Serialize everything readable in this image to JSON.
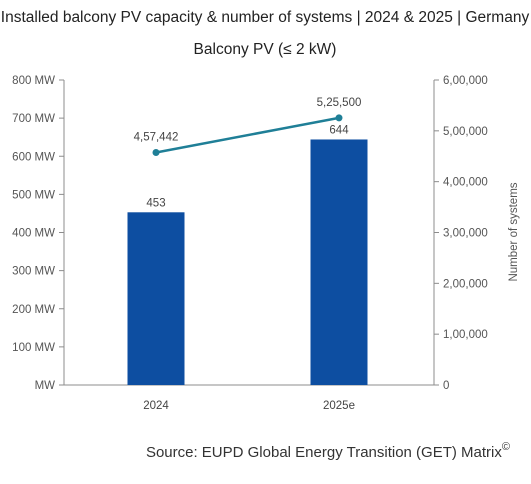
{
  "chart_data": {
    "type": "bar+line",
    "title": "Installed balcony PV capacity & number of systems | 2024 & 2025 | Germany",
    "subtitle": "Balcony PV (≤ 2 kW)",
    "categories": [
      "2024",
      "2025e"
    ],
    "series": [
      {
        "type": "bar",
        "axis": "left",
        "values": [
          453,
          644
        ],
        "data_labels": [
          "453",
          "644"
        ],
        "color": "#0d4ea1"
      },
      {
        "type": "line",
        "axis": "right",
        "values": [
          457442,
          525500
        ],
        "data_labels": [
          "4,57,442",
          "5,25,500"
        ],
        "color": "#1f7f97"
      }
    ],
    "left_axis": {
      "min": 0,
      "max": 800,
      "ticks": [
        0,
        100,
        200,
        300,
        400,
        500,
        600,
        700,
        800
      ],
      "tick_labels": [
        "MW",
        "100 MW",
        "200 MW",
        "300 MW",
        "400 MW",
        "500 MW",
        "600 MW",
        "700 MW",
        "800 MW"
      ]
    },
    "right_axis": {
      "label": "Number of systems",
      "min": 0,
      "max": 600000,
      "ticks": [
        0,
        100000,
        200000,
        300000,
        400000,
        500000,
        600000
      ],
      "tick_labels": [
        "0",
        "1,00,000",
        "2,00,000",
        "3,00,000",
        "4,00,000",
        "5,00,000",
        "6,00,000"
      ]
    },
    "grid": false,
    "legend": "none"
  },
  "source": {
    "text": "Source: EUPD Global Energy Transition (GET) Matrix",
    "mark": "©"
  }
}
